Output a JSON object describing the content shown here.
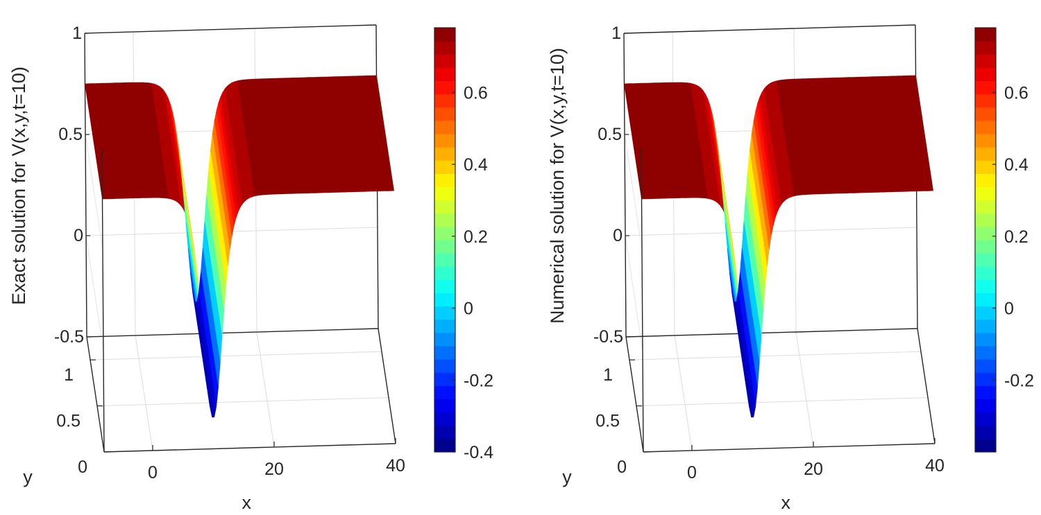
{
  "figure": {
    "background": "#ffffff"
  },
  "chart_data": [
    {
      "type": "surface",
      "panel": "left",
      "zlabel": "Exact solution for V(x,y,t=10)",
      "xlabel": "x",
      "ylabel": "y",
      "x_ticks": [
        "0",
        "20",
        "40"
      ],
      "y_ticks": [
        "0",
        "0.5",
        "1"
      ],
      "z_ticks": [
        "-0.5",
        "0",
        "0.5",
        "1"
      ],
      "xlim": [
        -8,
        40
      ],
      "ylim": [
        0,
        1.25
      ],
      "zlim": [
        -0.5,
        1
      ],
      "surface": {
        "function": "V(x) = 0.75 - 1.1 * sech^2((x - 10) / 2.2), constant in y",
        "plateau": 0.75,
        "minimum": -0.35,
        "trough_x": 10
      },
      "colorbar": {
        "range": [
          -0.4,
          0.78
        ],
        "ticks": [
          "-0.4",
          "-0.2",
          "0",
          "0.2",
          "0.4",
          "0.6"
        ],
        "tick_values": [
          -0.4,
          -0.2,
          0,
          0.2,
          0.4,
          0.6
        ],
        "colormap": "jet (banded)"
      }
    },
    {
      "type": "surface",
      "panel": "right",
      "zlabel": "Numerical solution for V(x,y,t=10)",
      "xlabel": "x",
      "ylabel": "y",
      "x_ticks": [
        "0",
        "20",
        "40"
      ],
      "y_ticks": [
        "0",
        "0.5",
        "1"
      ],
      "z_ticks": [
        "-0.5",
        "0",
        "0.5",
        "1"
      ],
      "xlim": [
        -8,
        40
      ],
      "ylim": [
        0,
        1.25
      ],
      "zlim": [
        -0.5,
        1
      ],
      "surface": {
        "function": "V(x) = 0.75 - 1.1 * sech^2((x - 10) / 2.2), constant in y",
        "plateau": 0.75,
        "minimum": -0.35,
        "trough_x": 10
      },
      "colorbar": {
        "range": [
          -0.4,
          0.78
        ],
        "ticks": [
          "-0.2",
          "0",
          "0.2",
          "0.4",
          "0.6"
        ],
        "tick_values": [
          -0.2,
          0,
          0.2,
          0.4,
          0.6
        ],
        "colormap": "jet (banded)"
      }
    }
  ]
}
